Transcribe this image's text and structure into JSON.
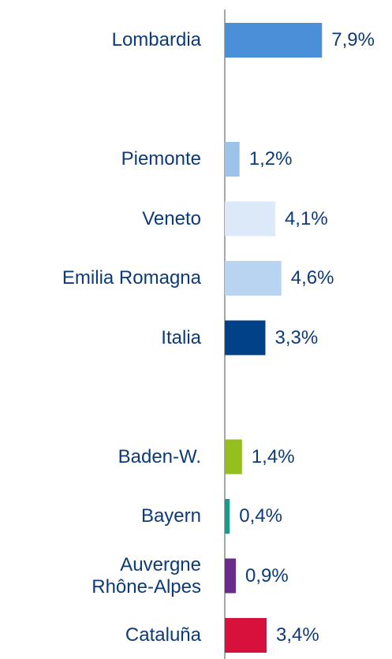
{
  "chart_data": {
    "type": "bar",
    "orientation": "horizontal",
    "categories": [
      "Lombardia",
      null,
      "Piemonte",
      "Veneto",
      "Emilia Romagna",
      "Italia",
      null,
      "Baden-W.",
      "Bayern",
      "Auvergne\nRhône-Alpes",
      "Cataluña"
    ],
    "values": [
      7.9,
      null,
      1.2,
      4.1,
      4.6,
      3.3,
      null,
      1.4,
      0.4,
      0.9,
      3.4
    ],
    "value_labels": [
      "7,9%",
      null,
      "1,2%",
      "4,1%",
      "4,6%",
      "3,3%",
      null,
      "1,4%",
      "0,4%",
      "0,9%",
      "3,4%"
    ],
    "colors": [
      "#4a90d9",
      null,
      "#9dc3ea",
      "#dce9f8",
      "#b9d4f1",
      "#004188",
      null,
      "#93c01f",
      "#1a9a88",
      "#6a2c8a",
      "#d7103c"
    ],
    "xlim": [
      0,
      10
    ]
  }
}
